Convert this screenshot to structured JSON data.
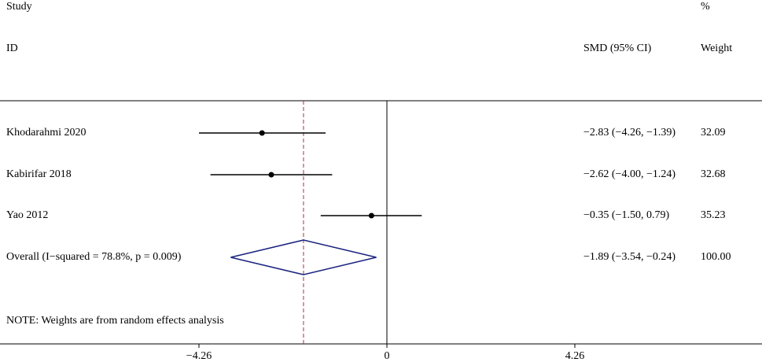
{
  "chart_data": {
    "type": "forest",
    "study_header": "Study",
    "id_header": "ID",
    "effect_header": "SMD (95% CI)",
    "percent_header": "%",
    "weight_header": "Weight",
    "categories": [
      "Khodarahmi 2020",
      "Kabirifar 2018",
      "Yao 2012"
    ],
    "values": [
      -2.83,
      -2.62,
      -0.35
    ],
    "lower": [
      -4.26,
      -4.0,
      -1.5
    ],
    "upper": [
      -1.39,
      -1.24,
      0.79
    ],
    "value_labels": [
      "−2.83 (−4.26, −1.39)",
      "−2.62 (−4.00, −1.24)",
      "−0.35 (−1.50, 0.79)"
    ],
    "weights": [
      32.09,
      32.68,
      35.23
    ],
    "overall": {
      "label": "Overall  (I−squared = 78.8%, p = 0.009)",
      "value": -1.89,
      "lower": -3.54,
      "upper": -0.24,
      "value_label": "−1.89 (−3.54, −0.24)",
      "weight": 100,
      "weight_label": "100.00"
    },
    "note": "NOTE: Weights are from random effects analysis",
    "xlim": [
      -4.26,
      4.26
    ],
    "xticks": [
      {
        "value": -4.26,
        "label": "−4.26"
      },
      0,
      4.26
    ],
    "line_color": "#000000",
    "diamond_color": "#1a237e",
    "reference_color": "#b03040"
  }
}
